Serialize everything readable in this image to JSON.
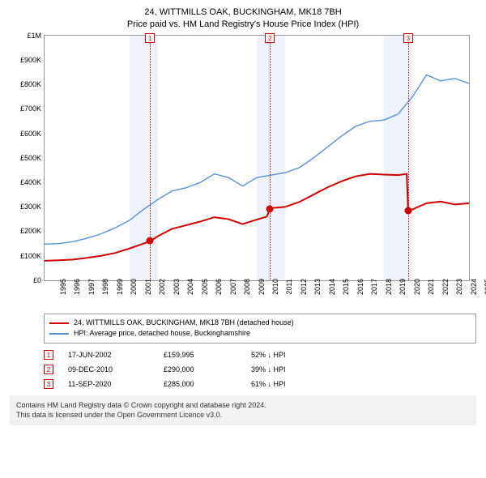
{
  "title": {
    "line1": "24, WITTMILLS OAK, BUCKINGHAM, MK18 7BH",
    "line2": "Price paid vs. HM Land Registry's House Price Index (HPI)"
  },
  "chart": {
    "type": "line",
    "background_color": "#ffffff",
    "border_color": "#999999",
    "band_color": "#eef2fa",
    "vline_color": "#cc0000",
    "ylim": [
      0,
      1000000
    ],
    "ytick_step": 100000,
    "yticklabels": [
      "£0",
      "£100K",
      "£200K",
      "£300K",
      "£400K",
      "£500K",
      "£600K",
      "£700K",
      "£800K",
      "£900K",
      "£1M"
    ],
    "xlim": [
      1995,
      2025
    ],
    "xtick_step": 1,
    "xticklabels": [
      "1995",
      "1996",
      "1997",
      "1998",
      "1999",
      "2000",
      "2001",
      "2002",
      "2003",
      "2004",
      "2005",
      "2006",
      "2007",
      "2008",
      "2009",
      "2010",
      "2011",
      "2012",
      "2013",
      "2014",
      "2015",
      "2016",
      "2017",
      "2018",
      "2019",
      "2020",
      "2021",
      "2022",
      "2023",
      "2024",
      "2025"
    ],
    "bands": [
      {
        "start": 2001,
        "end": 2003
      },
      {
        "start": 2010,
        "end": 2012
      },
      {
        "start": 2019,
        "end": 2021
      }
    ],
    "markers": [
      {
        "num": "1",
        "x": 2002.45,
        "y": 159995,
        "dot_color": "#cc0000"
      },
      {
        "num": "2",
        "x": 2010.94,
        "y": 290000,
        "dot_color": "#cc0000"
      },
      {
        "num": "3",
        "x": 2020.7,
        "y": 285000,
        "dot_color": "#cc0000"
      }
    ],
    "series": [
      {
        "name": "property",
        "color": "#cc0000",
        "width": 2,
        "points": [
          [
            1995.0,
            80000
          ],
          [
            1996.0,
            82000
          ],
          [
            1997.0,
            85000
          ],
          [
            1998.0,
            92000
          ],
          [
            1999.0,
            100000
          ],
          [
            2000.0,
            112000
          ],
          [
            2001.0,
            130000
          ],
          [
            2002.0,
            150000
          ],
          [
            2002.45,
            159995
          ],
          [
            2003.0,
            180000
          ],
          [
            2004.0,
            210000
          ],
          [
            2005.0,
            225000
          ],
          [
            2006.0,
            240000
          ],
          [
            2007.0,
            258000
          ],
          [
            2008.0,
            250000
          ],
          [
            2009.0,
            230000
          ],
          [
            2010.0,
            248000
          ],
          [
            2010.7,
            260000
          ],
          [
            2010.94,
            290000
          ],
          [
            2011.0,
            295000
          ],
          [
            2012.0,
            300000
          ],
          [
            2013.0,
            320000
          ],
          [
            2014.0,
            350000
          ],
          [
            2015.0,
            380000
          ],
          [
            2016.0,
            405000
          ],
          [
            2017.0,
            425000
          ],
          [
            2018.0,
            435000
          ],
          [
            2019.0,
            432000
          ],
          [
            2020.0,
            430000
          ],
          [
            2020.6,
            435000
          ],
          [
            2020.7,
            285000
          ],
          [
            2021.0,
            290000
          ],
          [
            2022.0,
            315000
          ],
          [
            2023.0,
            322000
          ],
          [
            2024.0,
            310000
          ],
          [
            2025.0,
            315000
          ]
        ]
      },
      {
        "name": "hpi",
        "color": "#5b8fd6",
        "width": 1.4,
        "points": [
          [
            1995.0,
            148000
          ],
          [
            1996.0,
            150000
          ],
          [
            1997.0,
            158000
          ],
          [
            1998.0,
            172000
          ],
          [
            1999.0,
            190000
          ],
          [
            2000.0,
            215000
          ],
          [
            2001.0,
            245000
          ],
          [
            2002.0,
            290000
          ],
          [
            2003.0,
            330000
          ],
          [
            2004.0,
            365000
          ],
          [
            2005.0,
            378000
          ],
          [
            2006.0,
            400000
          ],
          [
            2007.0,
            435000
          ],
          [
            2008.0,
            420000
          ],
          [
            2009.0,
            385000
          ],
          [
            2010.0,
            420000
          ],
          [
            2011.0,
            430000
          ],
          [
            2012.0,
            440000
          ],
          [
            2013.0,
            460000
          ],
          [
            2014.0,
            500000
          ],
          [
            2015.0,
            545000
          ],
          [
            2016.0,
            590000
          ],
          [
            2017.0,
            630000
          ],
          [
            2018.0,
            650000
          ],
          [
            2019.0,
            655000
          ],
          [
            2020.0,
            680000
          ],
          [
            2021.0,
            750000
          ],
          [
            2022.0,
            840000
          ],
          [
            2023.0,
            815000
          ],
          [
            2024.0,
            825000
          ],
          [
            2025.0,
            805000
          ]
        ]
      }
    ]
  },
  "legend": {
    "items": [
      {
        "color": "#cc0000",
        "label": "24, WITTMILLS OAK, BUCKINGHAM, MK18 7BH (detached house)"
      },
      {
        "color": "#5b8fd6",
        "label": "HPI: Average price, detached house, Buckinghamshire"
      }
    ]
  },
  "sales": [
    {
      "num": "1",
      "date": "17-JUN-2002",
      "price": "£159,995",
      "delta": "52% ↓ HPI"
    },
    {
      "num": "2",
      "date": "09-DEC-2010",
      "price": "£290,000",
      "delta": "39% ↓ HPI"
    },
    {
      "num": "3",
      "date": "11-SEP-2020",
      "price": "£285,000",
      "delta": "61% ↓ HPI"
    }
  ],
  "footer": {
    "line1": "Contains HM Land Registry data © Crown copyright and database right 2024.",
    "line2": "This data is licensed under the Open Government Licence v3.0."
  }
}
